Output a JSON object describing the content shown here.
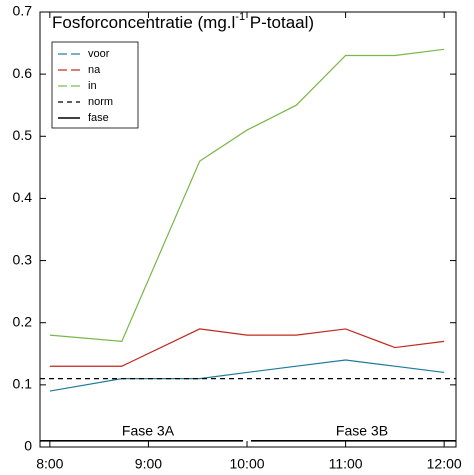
{
  "chart_data": {
    "type": "line",
    "title": {
      "main": "Fosforconcentratie (mg.l",
      "sup": "-1",
      "end": " P-totaal)"
    },
    "xlim": [
      7.9,
      12.12
    ],
    "xticks": [
      {
        "value": 8,
        "label": "8:00"
      },
      {
        "value": 9,
        "label": "9:00"
      },
      {
        "value": 10,
        "label": "10:00"
      },
      {
        "value": 11,
        "label": "11:00"
      },
      {
        "value": 12,
        "label": "12:00"
      }
    ],
    "ylim": [
      0,
      0.7
    ],
    "yticks": [
      0,
      0.1,
      0.2,
      0.3,
      0.4,
      0.5,
      0.6,
      0.7
    ],
    "legend": "upper left",
    "series": [
      {
        "name": "voor",
        "color": "#1f7a99",
        "dash": "gap",
        "x": [
          8,
          8.73,
          9.52,
          10,
          10.5,
          11,
          11.5,
          12
        ],
        "values": [
          0.09,
          0.11,
          0.11,
          0.12,
          0.13,
          0.14,
          0.13,
          0.12
        ]
      },
      {
        "name": "na",
        "color": "#c0281e",
        "dash": "gap",
        "x": [
          8,
          8.73,
          9.52,
          10,
          10.5,
          11,
          11.5,
          12
        ],
        "values": [
          0.13,
          0.13,
          0.19,
          0.18,
          0.18,
          0.19,
          0.16,
          0.17
        ]
      },
      {
        "name": "in",
        "color": "#7ab648",
        "dash": "gap",
        "x": [
          8,
          8.73,
          9.52,
          10,
          10.5,
          11,
          11.5,
          12
        ],
        "values": [
          0.18,
          0.17,
          0.46,
          0.51,
          0.55,
          0.63,
          0.63,
          0.64
        ]
      },
      {
        "name": "norm",
        "color": "#000000",
        "dash": "dashed",
        "x": [
          7.9,
          12.12
        ],
        "values": [
          0.11,
          0.11
        ]
      },
      {
        "name": "fase",
        "color": "#000000",
        "dash": "solid",
        "x": [
          7.9,
          9.96,
          10,
          10.04,
          12.12
        ],
        "values": [
          0.01,
          0.01,
          null,
          0.01,
          0.01
        ]
      }
    ],
    "annotations": [
      "Fase 3A",
      "Fase 3B"
    ]
  }
}
